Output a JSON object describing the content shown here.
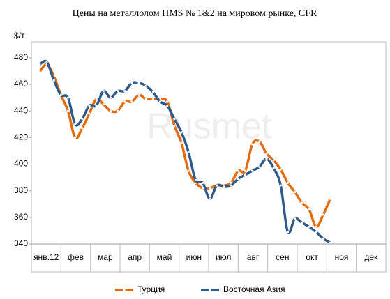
{
  "chart_data": {
    "type": "line",
    "title": "Цены на металлолом HMS № 1&2 на мировом рынке, CFR",
    "y_label": "$/т",
    "watermark": "Rusmet",
    "categories": [
      "янв.12",
      "фев",
      "мар",
      "апр",
      "май",
      "июн",
      "июл",
      "авг",
      "сен",
      "окт",
      "ноя",
      "дек"
    ],
    "xlim": [
      0,
      12
    ],
    "x": [
      0.28,
      0.52,
      0.76,
      1.0,
      1.24,
      1.48,
      1.72,
      1.96,
      2.2,
      2.44,
      2.68,
      2.92,
      3.16,
      3.4,
      3.64,
      3.88,
      4.12,
      4.36,
      4.6,
      4.84,
      5.08,
      5.32,
      5.56,
      5.8,
      6.04,
      6.28,
      6.52,
      6.76,
      7.0,
      7.24,
      7.48,
      7.72,
      7.96,
      8.2,
      8.44,
      8.68,
      8.92,
      9.16,
      9.4,
      9.64,
      9.88,
      10.12
    ],
    "ylim": [
      340,
      492
    ],
    "yticks": [
      340,
      360,
      380,
      400,
      420,
      440,
      460,
      480
    ],
    "series": [
      {
        "name": "Турция",
        "color": "#e46c0a",
        "values": [
          469.5,
          475,
          466,
          452,
          440,
          420,
          427,
          438,
          449,
          445,
          440,
          440,
          447,
          447,
          452,
          449,
          449,
          449,
          447,
          429,
          416,
          395,
          386,
          382,
          382,
          384,
          384,
          386,
          395,
          395,
          415,
          417,
          408,
          403,
          396,
          386,
          379,
          371,
          366,
          353,
          362,
          374
        ]
      },
      {
        "name": "Восточная Азия",
        "color": "#2e5a8c",
        "values": [
          475,
          477,
          463,
          452,
          450,
          430,
          434,
          444,
          444,
          455,
          450,
          455,
          455,
          461,
          461,
          459,
          454,
          447,
          444,
          434,
          424,
          409,
          388,
          386,
          374,
          384,
          383,
          384,
          389,
          392,
          395,
          398,
          404,
          397,
          384,
          349,
          359,
          356,
          353,
          349,
          344,
          341
        ]
      }
    ]
  }
}
